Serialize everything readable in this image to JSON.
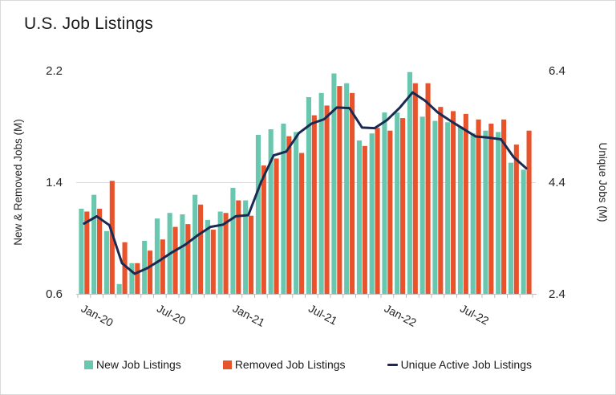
{
  "title": "U.S. Job Listings",
  "colors": {
    "new": "#69C6AF",
    "removed": "#E9532C",
    "unique": "#1B2A52",
    "grid": "#D9D9D9",
    "axis_line": "#BFBFBF",
    "text": "#262626",
    "title_text": "#1A1A1A"
  },
  "left_axis": {
    "title": "New & Removed Jobs (M)",
    "min": 0.6,
    "max": 2.2,
    "ticks": [
      0.6,
      1.4,
      2.2
    ],
    "tick_labels": [
      "0.6",
      "1.4",
      "2.2"
    ]
  },
  "right_axis": {
    "title": "Unique Jobs (M)",
    "min": 2.4,
    "max": 6.4,
    "ticks": [
      2.4,
      4.4,
      6.4
    ],
    "tick_labels": [
      "2.4",
      "4.4",
      "6.4"
    ]
  },
  "x_axis": {
    "labeled_ticks": [
      "Jan-20",
      "Jul-20",
      "Jan-21",
      "Jul-21",
      "Jan-22",
      "Jul-22"
    ],
    "label_every": 6
  },
  "legend": {
    "items": [
      {
        "label": "New Job Listings",
        "marker": "square",
        "color": "#69C6AF"
      },
      {
        "label": "Removed Job Listings",
        "marker": "square",
        "color": "#E9532C"
      },
      {
        "label": "Unique Active Job Listings",
        "marker": "line",
        "color": "#1B2A52"
      }
    ]
  },
  "chart_data": {
    "type": "combo-bar-line",
    "categories": [
      "Jan-20",
      "Feb-20",
      "Mar-20",
      "Apr-20",
      "May-20",
      "Jun-20",
      "Jul-20",
      "Aug-20",
      "Sep-20",
      "Oct-20",
      "Nov-20",
      "Dec-20",
      "Jan-21",
      "Feb-21",
      "Mar-21",
      "Apr-21",
      "May-21",
      "Jun-21",
      "Jul-21",
      "Aug-21",
      "Sep-21",
      "Oct-21",
      "Nov-21",
      "Dec-21",
      "Jan-22",
      "Feb-22",
      "Mar-22",
      "Apr-22",
      "May-22",
      "Jun-22",
      "Jul-22",
      "Aug-22",
      "Sep-22",
      "Oct-22",
      "Nov-22",
      "Dec-22"
    ],
    "series": [
      {
        "name": "New Job Listings",
        "type": "bar",
        "axis": "left",
        "values": [
          1.21,
          1.31,
          1.05,
          0.67,
          0.82,
          0.98,
          1.14,
          1.18,
          1.17,
          1.31,
          1.13,
          1.19,
          1.36,
          1.27,
          1.74,
          1.78,
          1.82,
          1.76,
          2.01,
          2.04,
          2.18,
          2.11,
          1.7,
          1.75,
          1.9,
          1.9,
          2.19,
          1.87,
          1.84,
          1.83,
          1.8,
          1.75,
          1.77,
          1.76,
          1.54,
          1.49
        ]
      },
      {
        "name": "Removed Job Listings",
        "type": "bar",
        "axis": "left",
        "values": [
          1.19,
          1.21,
          1.41,
          0.97,
          0.82,
          0.91,
          0.99,
          1.08,
          1.1,
          1.24,
          1.06,
          1.18,
          1.27,
          1.16,
          1.52,
          1.57,
          1.73,
          1.61,
          1.88,
          1.95,
          2.09,
          2.04,
          1.66,
          1.79,
          1.77,
          1.86,
          2.11,
          2.11,
          1.94,
          1.91,
          1.89,
          1.85,
          1.82,
          1.85,
          1.67,
          1.77
        ]
      },
      {
        "name": "Unique Active Job Listings",
        "type": "line",
        "axis": "right",
        "values": [
          3.66,
          3.79,
          3.63,
          2.95,
          2.76,
          2.86,
          3.0,
          3.15,
          3.28,
          3.45,
          3.6,
          3.64,
          3.79,
          3.81,
          4.4,
          4.88,
          4.95,
          5.28,
          5.45,
          5.53,
          5.74,
          5.73,
          5.38,
          5.37,
          5.52,
          5.74,
          6.01,
          5.86,
          5.65,
          5.5,
          5.36,
          5.22,
          5.2,
          5.17,
          4.85,
          4.65
        ]
      }
    ],
    "left_ylim": [
      0.6,
      2.2
    ],
    "right_ylim": [
      2.4,
      6.4
    ],
    "gridlines_at_left_values": [
      1.4
    ],
    "legend_position": "bottom"
  }
}
